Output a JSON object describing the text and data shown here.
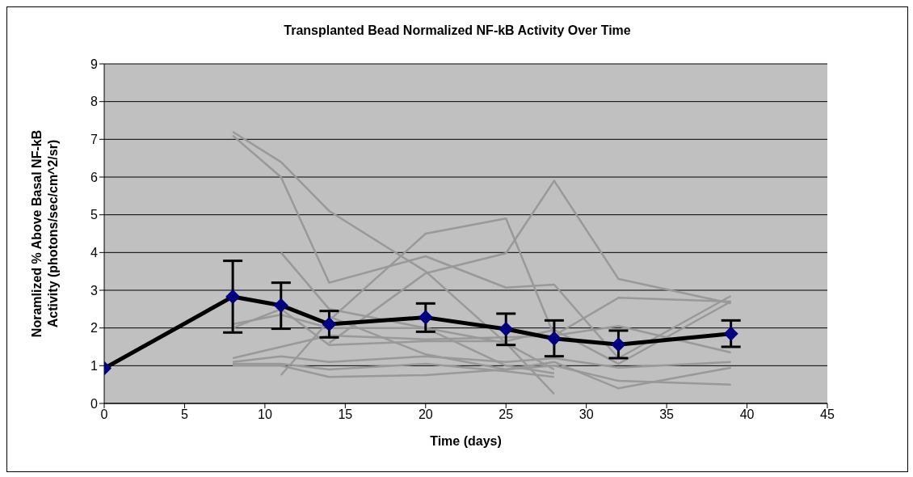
{
  "chart_data": {
    "type": "line",
    "title": "Transplanted Bead Normalized NF-kB Activity Over Time",
    "xlabel": "Time (days)",
    "ylabel": "Noramlized % Above Basal NF-kB Activity (photons/sec/cm^2/sr)",
    "xlim": [
      0,
      45
    ],
    "xticks": [
      0,
      5,
      10,
      15,
      20,
      25,
      30,
      35,
      40,
      45
    ],
    "ylim": [
      0,
      9
    ],
    "yticks": [
      0,
      1,
      2,
      3,
      4,
      5,
      6,
      7,
      8,
      9
    ],
    "grid": "y",
    "line_style": "solid",
    "series": [
      {
        "color": "#999999",
        "x": [
          8,
          11,
          14,
          20,
          25,
          28
        ],
        "values": [
          7.2,
          6.4,
          5.1,
          3.5,
          1.6,
          0.25
        ]
      },
      {
        "color": "#999999",
        "x": [
          8,
          11,
          14,
          20,
          25,
          28,
          32,
          39
        ],
        "values": [
          7.1,
          6.0,
          3.2,
          3.9,
          3.07,
          3.15,
          1.2,
          2.85
        ]
      },
      {
        "color": "#999999",
        "x": [
          11,
          14,
          20,
          25,
          28
        ],
        "values": [
          4.0,
          2.5,
          2.0,
          1.6,
          0.9
        ]
      },
      {
        "color": "#999999",
        "x": [
          11,
          14,
          20,
          25,
          28,
          32,
          39
        ],
        "values": [
          0.75,
          2.2,
          4.5,
          4.9,
          1.8,
          2.8,
          2.7
        ]
      },
      {
        "color": "#999999",
        "x": [
          14,
          20,
          25,
          28,
          32,
          39
        ],
        "values": [
          1.6,
          3.45,
          3.98,
          5.9,
          3.3,
          2.65
        ]
      },
      {
        "color": "#999999",
        "x": [
          8,
          11,
          14,
          20,
          25,
          28,
          32,
          39
        ],
        "values": [
          2.0,
          2.5,
          1.55,
          1.65,
          1.65,
          1.95,
          1.05,
          2.7
        ]
      },
      {
        "color": "#999999",
        "x": [
          8,
          11,
          14,
          20,
          25,
          28
        ],
        "values": [
          2.1,
          2.35,
          2.0,
          2.0,
          1.0,
          0.8
        ]
      },
      {
        "color": "#999999",
        "x": [
          8,
          11,
          14,
          20,
          25,
          28,
          32,
          39
        ],
        "values": [
          1.2,
          1.5,
          1.8,
          1.7,
          1.75,
          1.8,
          2.05,
          1.35
        ]
      },
      {
        "color": "#999999",
        "x": [
          8,
          11,
          14,
          20,
          25,
          28,
          32,
          39
        ],
        "values": [
          1.1,
          1.25,
          1.1,
          1.25,
          1.1,
          1.2,
          0.95,
          1.1
        ]
      },
      {
        "color": "#999999",
        "x": [
          8,
          11,
          14,
          20,
          25,
          28
        ],
        "values": [
          1.05,
          1.05,
          0.9,
          1.05,
          0.85,
          0.7
        ]
      },
      {
        "color": "#999999",
        "x": [
          8,
          11,
          14,
          20,
          25,
          28,
          32,
          39
        ],
        "values": [
          1.0,
          1.0,
          0.7,
          0.75,
          0.9,
          1.0,
          0.6,
          0.5
        ]
      },
      {
        "color": "#999999",
        "x": [
          14,
          20,
          25,
          28,
          32,
          39
        ],
        "values": [
          2.3,
          1.3,
          0.9,
          1.1,
          0.4,
          0.95
        ]
      },
      {
        "color": "#000000",
        "marker": "diamond",
        "x": [
          0,
          8,
          11,
          14,
          20,
          25,
          28,
          32,
          39
        ],
        "values": [
          0.93,
          2.83,
          2.6,
          2.1,
          2.28,
          1.97,
          1.72,
          1.56,
          1.85
        ],
        "errors": [
          null,
          [
            1.88,
            3.78
          ],
          [
            1.98,
            3.2
          ],
          [
            1.75,
            2.45
          ],
          [
            1.9,
            2.65
          ],
          [
            1.55,
            2.38
          ],
          [
            1.25,
            2.2
          ],
          [
            1.2,
            1.93
          ],
          [
            1.5,
            2.2
          ]
        ]
      }
    ]
  }
}
